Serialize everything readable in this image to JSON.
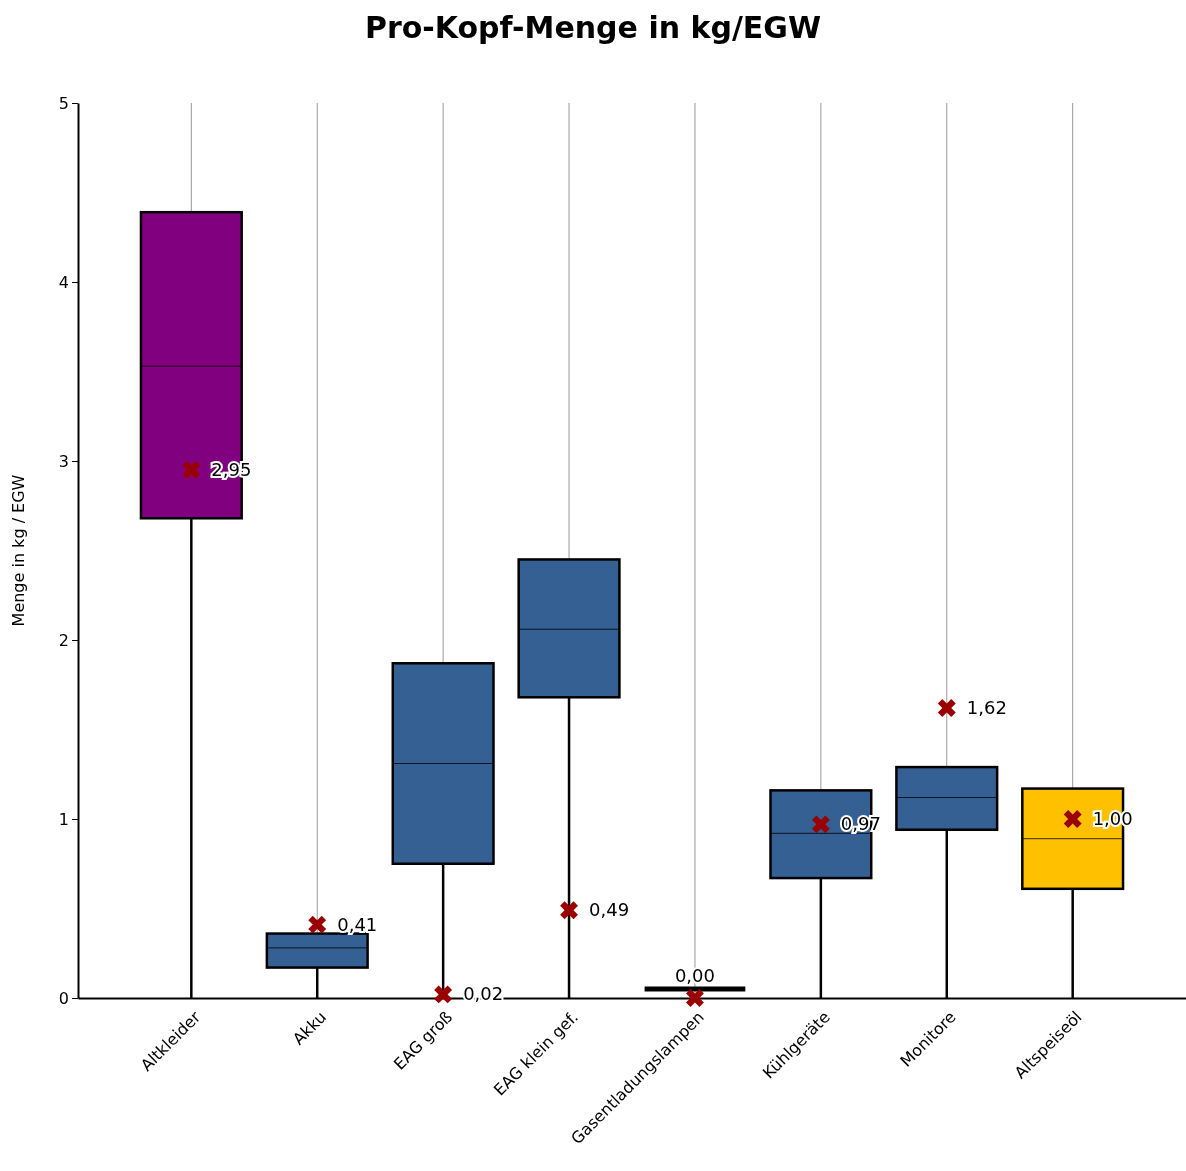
{
  "chart_data": {
    "type": "box",
    "title": "Pro-Kopf-Menge in kg/EGW",
    "ylabel": "Menge in kg / EGW",
    "categories": [
      "Altkleider",
      "Akku",
      "EAG groß",
      "EAG klein gef.",
      "Gasentladungslampen",
      "Kühlgeräte",
      "Monitore",
      "Altspeiseöl"
    ],
    "boxes": [
      {
        "low": 0,
        "q1": 2.68,
        "median": 3.53,
        "q3": 4.39,
        "high": 4.39
      },
      {
        "low": 0,
        "q1": 0.17,
        "median": 0.28,
        "q3": 0.36,
        "high": 0.36
      },
      {
        "low": 0,
        "q1": 0.75,
        "median": 1.31,
        "q3": 1.87,
        "high": 1.87
      },
      {
        "low": 0,
        "q1": 1.68,
        "median": 2.06,
        "q3": 2.45,
        "high": 2.45
      },
      {
        "low": 0.05,
        "q1": 0.05,
        "median": 0.05,
        "q3": 0.05,
        "high": 0.05
      },
      {
        "low": 0,
        "q1": 0.67,
        "median": 0.92,
        "q3": 1.16,
        "high": 1.16
      },
      {
        "low": 0,
        "q1": 0.94,
        "median": 1.12,
        "q3": 1.29,
        "high": 1.29
      },
      {
        "low": 0,
        "q1": 0.61,
        "median": 0.89,
        "q3": 1.17,
        "high": 1.17
      }
    ],
    "colors": [
      "#800080",
      "#356093",
      "#356093",
      "#356093",
      "#000000",
      "#356093",
      "#356093",
      "#ffc000"
    ],
    "series": [
      {
        "type": "scatter",
        "color": "#9b0000",
        "marker": "cross",
        "x": [
          "Altkleider",
          "Akku",
          "EAG groß",
          "EAG klein gef.",
          "Gasentladungslampen",
          "Kühlgeräte",
          "Monitore",
          "Altspeiseöl"
        ],
        "values": [
          2.95,
          0.41,
          0.02,
          0.49,
          0.0,
          0.97,
          1.62,
          1.0
        ],
        "value_labels": [
          "2,95",
          "0,41",
          "0,02",
          "0,49",
          "0,00",
          "0,97",
          "1,62",
          "1,00"
        ]
      }
    ],
    "ylim": [
      0,
      5
    ],
    "yticks": [
      0,
      1,
      2,
      3,
      4,
      5
    ],
    "grid": "x"
  }
}
